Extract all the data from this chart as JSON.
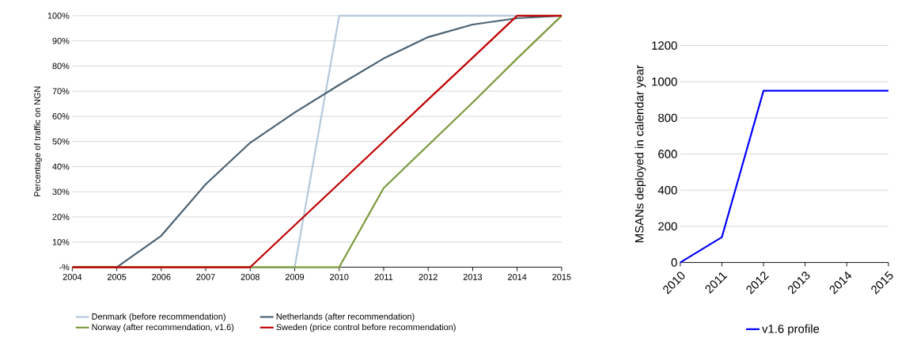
{
  "chart_data": [
    {
      "type": "line",
      "ylabel": "Percentage of traffic on NGN",
      "x": [
        2004,
        2005,
        2006,
        2007,
        2008,
        2009,
        2010,
        2011,
        2012,
        2013,
        2014,
        2015
      ],
      "series": [
        {
          "name": "Denmark (before recommendation)",
          "color": "#b4c8da",
          "values": [
            0,
            0,
            0,
            0,
            0,
            0,
            100,
            100,
            100,
            100,
            100,
            100
          ]
        },
        {
          "name": "Netherlands (after recommendation)",
          "color": "#4a6274",
          "values": [
            0,
            0,
            12.5,
            33,
            49.5,
            61.5,
            72.5,
            83,
            91.5,
            96.5,
            99,
            100
          ]
        },
        {
          "name": "Norway (after recommendation, v1.6)",
          "color": "#7a9a3a",
          "values": [
            0,
            0,
            0,
            0,
            0,
            0,
            0,
            31.5,
            48.5,
            65.5,
            83,
            100
          ]
        },
        {
          "name": "Sweden (price control before recommendation)",
          "color": "#c00000",
          "values": [
            0,
            0,
            0,
            0,
            0,
            16.7,
            33.3,
            50,
            66.7,
            83.3,
            100,
            100
          ]
        }
      ],
      "xlim": [
        2004,
        2015
      ],
      "xticks": [
        2004,
        2005,
        2006,
        2007,
        2008,
        2009,
        2010,
        2011,
        2012,
        2013,
        2014,
        2015
      ],
      "ylim": [
        0,
        100
      ],
      "yticks": [
        {
          "value": 0,
          "label": "-%"
        },
        {
          "value": 10,
          "label": "10%"
        },
        {
          "value": 20,
          "label": "20%"
        },
        {
          "value": 30,
          "label": "30%"
        },
        {
          "value": 40,
          "label": "40%"
        },
        {
          "value": 50,
          "label": "50%"
        },
        {
          "value": 60,
          "label": "60%"
        },
        {
          "value": 70,
          "label": "70%"
        },
        {
          "value": 80,
          "label": "80%"
        },
        {
          "value": 90,
          "label": "90%"
        },
        {
          "value": 100,
          "label": "100%"
        }
      ],
      "grid": "y",
      "legend": "bottom"
    },
    {
      "type": "line",
      "ylabel": "MSANs deployed in calendar year",
      "x": [
        2010,
        2011,
        2012,
        2013,
        2014,
        2015
      ],
      "series": [
        {
          "name": "v1.6 profile",
          "color": "#0000ff",
          "values": [
            0,
            140,
            950,
            950,
            950,
            950
          ]
        }
      ],
      "xlim": [
        2010,
        2015
      ],
      "xticks": [
        2010,
        2011,
        2012,
        2013,
        2014,
        2015
      ],
      "ylim": [
        0,
        1200
      ],
      "yticks": [
        0,
        200,
        400,
        600,
        800,
        1000,
        1200
      ],
      "grid": "y",
      "legend": "bottom"
    }
  ]
}
